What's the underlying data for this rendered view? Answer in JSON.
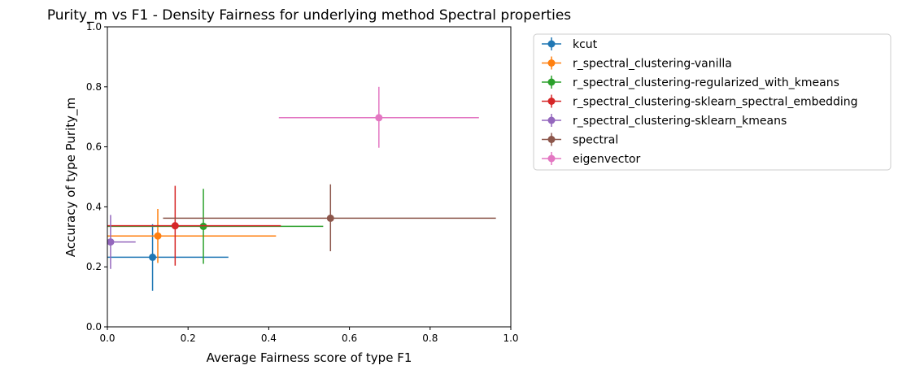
{
  "chart_data": {
    "type": "scatter",
    "title": "Purity_m vs F1 - Density Fairness for underlying method Spectral properties",
    "xlabel": "Average Fairness score of type F1",
    "ylabel": "Accuracy of type Purity_m",
    "xlim": [
      0.0,
      1.0
    ],
    "ylim": [
      0.0,
      1.0
    ],
    "xticks": [
      "0.0",
      "0.2",
      "0.4",
      "0.6",
      "0.8",
      "1.0"
    ],
    "yticks": [
      "0.0",
      "0.2",
      "0.4",
      "0.6",
      "0.8",
      "1.0"
    ],
    "grid": false,
    "legend_position": "outside-upper-right",
    "series": [
      {
        "name": "kcut",
        "color": "#1f77b4",
        "x": 0.112,
        "y": 0.232,
        "x_err": [
          0.112,
          0.188
        ],
        "y_err": [
          0.112,
          0.11
        ]
      },
      {
        "name": "r_spectral_clustering-vanilla",
        "color": "#ff7f0e",
        "x": 0.125,
        "y": 0.303,
        "x_err": [
          0.125,
          0.293
        ],
        "y_err": [
          0.09,
          0.09
        ]
      },
      {
        "name": "r_spectral_clustering-regularized_with_kmeans",
        "color": "#2ca02c",
        "x": 0.238,
        "y": 0.335,
        "x_err": [
          0.238,
          0.297
        ],
        "y_err": [
          0.125,
          0.125
        ]
      },
      {
        "name": "r_spectral_clustering-sklearn_spectral_embedding",
        "color": "#d62728",
        "x": 0.168,
        "y": 0.337,
        "x_err": [
          0.168,
          0.262
        ],
        "y_err": [
          0.133,
          0.133
        ]
      },
      {
        "name": "r_spectral_clustering-sklearn_kmeans",
        "color": "#9467bd",
        "x": 0.008,
        "y": 0.283,
        "x_err": [
          0.008,
          0.062
        ],
        "y_err": [
          0.09,
          0.09
        ]
      },
      {
        "name": "spectral",
        "color": "#8c564b",
        "x": 0.553,
        "y": 0.362,
        "x_err": [
          0.415,
          0.41
        ],
        "y_err": [
          0.11,
          0.113
        ]
      },
      {
        "name": "eigenvector",
        "color": "#e377c2",
        "x": 0.673,
        "y": 0.697,
        "x_err": [
          0.248,
          0.248
        ],
        "y_err": [
          0.1,
          0.103
        ]
      }
    ]
  }
}
